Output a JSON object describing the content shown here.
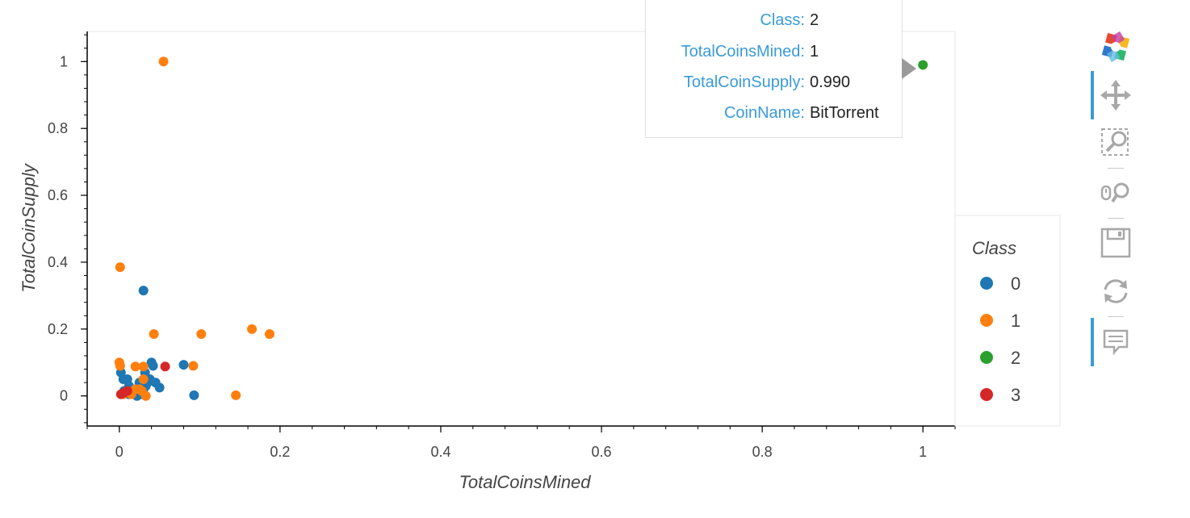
{
  "chart_data": {
    "type": "scatter",
    "xlabel": "TotalCoinsMined",
    "ylabel": "TotalCoinSupply",
    "xlim": [
      -0.04,
      1.04
    ],
    "ylim": [
      -0.09,
      1.09
    ],
    "x_ticks": [
      0,
      0.2,
      0.4,
      0.6,
      0.8,
      1
    ],
    "x_tick_labels": [
      "0",
      "0.2",
      "0.4",
      "0.6",
      "0.8",
      "1"
    ],
    "y_ticks": [
      0,
      0.2,
      0.4,
      0.6,
      0.8,
      1
    ],
    "y_tick_labels": [
      "0",
      "0.2",
      "0.4",
      "0.6",
      "0.8",
      "1"
    ],
    "grid": false,
    "legend": {
      "title": "Class",
      "placement": "right"
    },
    "series": [
      {
        "name": "0",
        "color": "#1f77b4",
        "points": [
          [
            0.002,
            0.07
          ],
          [
            0.005,
            0.05
          ],
          [
            0.01,
            0.05
          ],
          [
            0.012,
            0.03
          ],
          [
            0.015,
            0.02
          ],
          [
            0.02,
            0.01
          ],
          [
            0.022,
            0.0
          ],
          [
            0.025,
            0.04
          ],
          [
            0.03,
            0.02
          ],
          [
            0.033,
            0.03
          ],
          [
            0.035,
            0.04
          ],
          [
            0.04,
            0.1
          ],
          [
            0.042,
            0.09
          ],
          [
            0.045,
            0.04
          ],
          [
            0.05,
            0.025
          ],
          [
            0.03,
            0.315
          ],
          [
            0.08,
            0.093
          ],
          [
            0.093,
            0.002
          ],
          [
            0.018,
            0.005
          ],
          [
            0.028,
            0.005
          ],
          [
            0.012,
            0.005
          ],
          [
            0.006,
            0.015
          ],
          [
            0.038,
            0.05
          ],
          [
            0.032,
            0.07
          ]
        ]
      },
      {
        "name": "1",
        "color": "#ff7f0e",
        "points": [
          [
            0.055,
            1.0
          ],
          [
            0.001,
            0.385
          ],
          [
            0.0,
            0.1
          ],
          [
            0.001,
            0.09
          ],
          [
            0.043,
            0.185
          ],
          [
            0.102,
            0.185
          ],
          [
            0.165,
            0.2
          ],
          [
            0.187,
            0.185
          ],
          [
            0.092,
            0.09
          ],
          [
            0.145,
            0.002
          ],
          [
            0.02,
            0.088
          ],
          [
            0.03,
            0.088
          ],
          [
            0.03,
            0.05
          ],
          [
            0.02,
            0.02
          ],
          [
            0.025,
            0.02
          ],
          [
            0.01,
            0.01
          ],
          [
            0.005,
            0.005
          ],
          [
            0.033,
            0.0
          ],
          [
            0.015,
            0.005
          ],
          [
            0.028,
            0.015
          ]
        ]
      },
      {
        "name": "2",
        "color": "#2ca02c",
        "points": [
          [
            1.0,
            0.99
          ]
        ]
      },
      {
        "name": "3",
        "color": "#d62728",
        "points": [
          [
            0.057,
            0.088
          ],
          [
            0.002,
            0.005
          ],
          [
            0.006,
            0.01
          ],
          [
            0.01,
            0.015
          ]
        ]
      }
    ]
  },
  "tooltip": {
    "rows": [
      {
        "key": "Class:",
        "value": "2"
      },
      {
        "key": "TotalCoinsMined:",
        "value": "1"
      },
      {
        "key": "TotalCoinSupply:",
        "value": "0.990"
      },
      {
        "key": "CoinName:",
        "value": "BitTorrent"
      }
    ]
  },
  "toolbar": {
    "tools": [
      {
        "name": "bokeh-logo-icon",
        "active": false
      },
      {
        "name": "pan-icon",
        "active": true
      },
      {
        "name": "box-zoom-icon",
        "active": false
      },
      {
        "name": "wheel-zoom-icon",
        "active": false
      },
      {
        "name": "save-icon",
        "active": false
      },
      {
        "name": "reset-icon",
        "active": false
      },
      {
        "name": "hover-icon",
        "active": true
      }
    ]
  }
}
